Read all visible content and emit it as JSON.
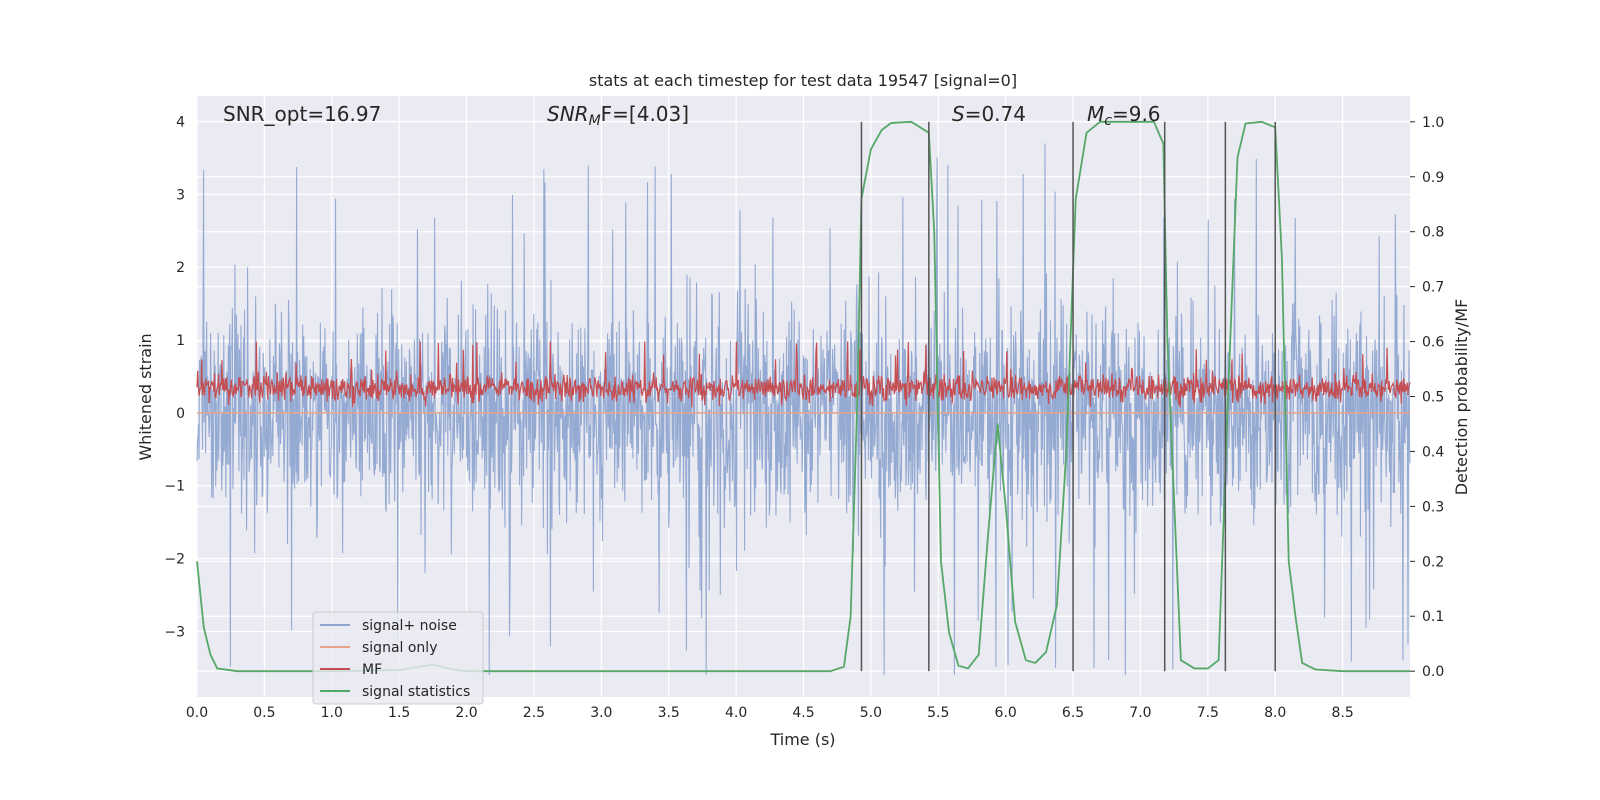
{
  "chart_data": {
    "type": "line",
    "title": "stats at each timestep for test data 19547 [signal=0]",
    "xlabel": "Time (s)",
    "ylabel": "Whitened strain",
    "ylabel_right": "Detection probability/MF",
    "xlim": [
      0.0,
      9.0
    ],
    "ylim": [
      -3.9,
      4.35
    ],
    "ylim_right": [
      -0.047,
      1.047
    ],
    "grid": true,
    "legend_position": "lower-left",
    "xticks": [
      "0.0",
      "0.5",
      "1.0",
      "1.5",
      "2.0",
      "2.5",
      "3.0",
      "3.5",
      "4.0",
      "4.5",
      "5.0",
      "5.5",
      "6.0",
      "6.5",
      "7.0",
      "7.5",
      "8.0",
      "8.5"
    ],
    "yticks": [
      "4",
      "3",
      "2",
      "1",
      "0",
      "−1",
      "−2",
      "−3"
    ],
    "yticks_right": [
      "1.0",
      "0.9",
      "0.8",
      "0.7",
      "0.6",
      "0.5",
      "0.4",
      "0.3",
      "0.2",
      "0.1",
      "0.0"
    ],
    "annotations": {
      "snr_opt": "SNR_opt=16.97",
      "snr_mf_main": "SNR",
      "snr_mf_sub": "M",
      "snr_mf_rest": "F=[4.03]",
      "s_main": "S",
      "s_rest": "=0.74",
      "mc_main": "M",
      "mc_sub": "c",
      "mc_rest": "=9.6"
    },
    "series": [
      {
        "name": "signal+ noise",
        "color": "#8fa6d0",
        "axis": "left",
        "amplitude_range": [
          -3.6,
          3.8
        ]
      },
      {
        "name": "signal only",
        "color": "#e8a48a",
        "axis": "left",
        "values_constant": 0.0
      },
      {
        "name": "MF",
        "color": "#c44e52",
        "axis": "right",
        "range": [
          0.48,
          0.6
        ]
      },
      {
        "name": "signal statistics",
        "color": "#55a868",
        "axis": "right",
        "x": [
          0.0,
          0.05,
          0.1,
          0.15,
          0.3,
          1.0,
          1.5,
          1.75,
          1.9,
          2.0,
          4.7,
          4.8,
          4.85,
          4.9,
          4.93,
          5.0,
          5.08,
          5.15,
          5.3,
          5.43,
          5.47,
          5.52,
          5.58,
          5.65,
          5.72,
          5.8,
          5.87,
          5.94,
          6.0,
          6.07,
          6.15,
          6.22,
          6.3,
          6.38,
          6.45,
          6.52,
          6.6,
          6.7,
          7.1,
          7.17,
          7.2,
          7.3,
          7.4,
          7.5,
          7.58,
          7.65,
          7.72,
          7.78,
          7.9,
          8.0,
          8.05,
          8.1,
          8.15,
          8.2,
          8.3,
          8.5,
          9.0
        ],
        "values": [
          0.2,
          0.08,
          0.03,
          0.005,
          0.0,
          0.0,
          0.002,
          0.012,
          0.003,
          0.0,
          0.0,
          0.008,
          0.1,
          0.5,
          0.86,
          0.95,
          0.985,
          0.998,
          1.0,
          0.98,
          0.8,
          0.2,
          0.07,
          0.01,
          0.005,
          0.03,
          0.25,
          0.45,
          0.3,
          0.09,
          0.02,
          0.015,
          0.035,
          0.12,
          0.4,
          0.86,
          0.98,
          1.0,
          1.0,
          0.96,
          0.6,
          0.02,
          0.005,
          0.005,
          0.02,
          0.5,
          0.935,
          0.997,
          1.0,
          0.99,
          0.75,
          0.2,
          0.1,
          0.015,
          0.003,
          0.0,
          0.0
        ]
      }
    ],
    "vertical_lines_x": [
      4.93,
      5.43,
      6.5,
      7.18,
      7.63,
      8.0
    ]
  }
}
